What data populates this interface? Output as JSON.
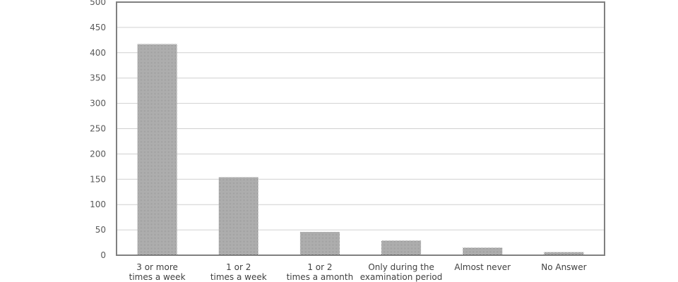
{
  "chart_data": {
    "type": "bar",
    "title": "",
    "xlabel": "",
    "ylabel": "",
    "ylim": [
      0,
      500
    ],
    "ytick_step": 50,
    "grid": true,
    "legend": "none",
    "categories": [
      [
        "3 or more",
        "times a week"
      ],
      [
        "1 or 2",
        "times a week"
      ],
      [
        "1 or 2",
        "times a amonth"
      ],
      [
        "Only during the",
        "examination period"
      ],
      [
        "Almost never"
      ],
      [
        "No Answer"
      ]
    ],
    "values": [
      417,
      154,
      46,
      29,
      15,
      6
    ],
    "colors": {
      "bar": "#6b6b6b",
      "bar_bg": "#f4f4f4",
      "frame": "#808080",
      "grid": "#d0d0d0"
    }
  }
}
